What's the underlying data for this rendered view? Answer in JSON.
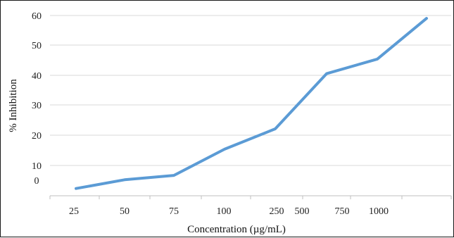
{
  "chart_data": {
    "type": "line",
    "title": "",
    "xlabel": "Concentration (µg/mL)",
    "ylabel": "% Inhibition",
    "categories": [
      "25",
      "50",
      "75",
      "100",
      "250",
      "500",
      "750",
      "1000"
    ],
    "y_ticks": [
      "60",
      "50",
      "40",
      "30",
      "20",
      "10",
      "0"
    ],
    "series": [
      {
        "values": [
          0.5,
          3.5,
          5,
          14,
          21,
          40,
          45,
          59
        ],
        "color": "#5b9bd5"
      }
    ],
    "ylim": [
      -2,
      60
    ],
    "grid": true,
    "legend": "none"
  }
}
